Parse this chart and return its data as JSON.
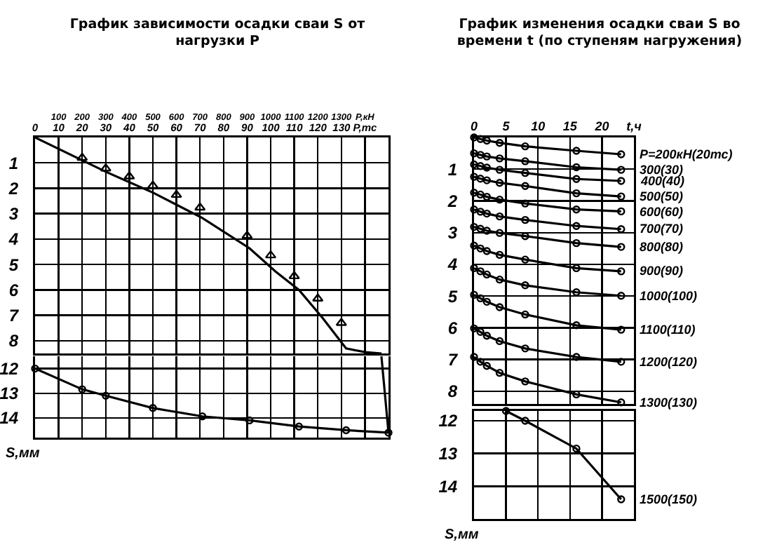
{
  "chart_data": [
    {
      "type": "line",
      "title": "График зависимости осадки сваи S от нагрузки P",
      "xlim": [
        0,
        150
      ],
      "xticks": [
        0,
        10,
        20,
        30,
        40,
        50,
        60,
        70,
        80,
        90,
        100,
        110,
        120,
        130,
        {
          "value": 140,
          "label": "P,тс"
        }
      ],
      "x2lim": [
        0,
        1500
      ],
      "x2ticks": [
        100,
        200,
        300,
        400,
        500,
        600,
        700,
        800,
        900,
        1000,
        1100,
        1200,
        1300,
        {
          "value": 1400,
          "label": "P,кН"
        }
      ],
      "ylim": [
        8.5,
        0
      ],
      "yticks": [
        1,
        2,
        3,
        4,
        5,
        6,
        7,
        8
      ],
      "grid": true,
      "series": [
        {
          "color": "#000000",
          "marker": "none",
          "x": [
            0,
            30,
            50,
            71,
            91,
            102,
            112,
            122,
            132,
            140,
            147
          ],
          "values": [
            0,
            1.35,
            2.17,
            3.17,
            4.36,
            5.27,
            6.0,
            7.1,
            8.3,
            8.45,
            8.5
          ]
        },
        {
          "type": "scatter",
          "color": "#000000",
          "marker": "triangle",
          "x": [
            20,
            30,
            40,
            50,
            60,
            70,
            90,
            100,
            110,
            120,
            130
          ],
          "values": [
            0.8,
            1.22,
            1.53,
            1.9,
            2.26,
            2.76,
            3.87,
            4.64,
            5.46,
            6.34,
            7.3
          ]
        }
      ]
    },
    {
      "type": "line",
      "ylabel": "S,мм",
      "xlim": [
        0,
        150
      ],
      "xticks": [
        0,
        10,
        20,
        30,
        40,
        50,
        60,
        70,
        80,
        90,
        100,
        110,
        120,
        130,
        140
      ],
      "ylim": [
        14.8,
        11.5
      ],
      "yticks": [
        12,
        13,
        14
      ],
      "grid": true,
      "tick_labels": "y",
      "series": [
        {
          "color": "#000000",
          "marker": "circle",
          "x": [
            0,
            20,
            30,
            50,
            71,
            91,
            112,
            132,
            150
          ],
          "values": [
            12.0,
            12.84,
            13.1,
            13.6,
            13.94,
            14.1,
            14.35,
            14.5,
            14.6
          ]
        },
        {
          "color": "#000000",
          "marker": "none",
          "x": [
            147,
            150
          ],
          "values": [
            11.5,
            14.6
          ]
        }
      ]
    },
    {
      "type": "line",
      "title": "График изменения осадки сваи S во времени t (по ступеням нагружения)",
      "x": [
        0,
        1,
        2,
        4,
        8,
        16,
        23
      ],
      "xlim": [
        0,
        25
      ],
      "xticks": [
        0,
        5,
        10,
        15,
        20,
        {
          "value": 25,
          "label": "t,ч"
        }
      ],
      "ylim": [
        8.4,
        0
      ],
      "yticks": [
        1,
        2,
        3,
        4,
        5,
        6,
        7,
        8
      ],
      "grid": true,
      "marker": "circle",
      "series": [
        {
          "name": "P=200кН(20тс)",
          "color": "#000000",
          "values": [
            0,
            0.05,
            0.1,
            0.17,
            0.28,
            0.42,
            0.53
          ]
        },
        {
          "name": "300(30)",
          "color": "#000000",
          "values": [
            0.5,
            0.55,
            0.6,
            0.66,
            0.75,
            0.94,
            1.02
          ]
        },
        {
          "name": "400(40)",
          "color": "#000000",
          "values": [
            0.85,
            0.9,
            0.95,
            1.02,
            1.12,
            1.31,
            1.37
          ]
        },
        {
          "name": "500(50)",
          "color": "#000000",
          "values": [
            1.24,
            1.3,
            1.35,
            1.43,
            1.53,
            1.76,
            1.86
          ]
        },
        {
          "name": "600(60)",
          "color": "#000000",
          "values": [
            1.74,
            1.8,
            1.87,
            1.96,
            2.08,
            2.27,
            2.33
          ]
        },
        {
          "name": "700(70)",
          "color": "#000000",
          "values": [
            2.27,
            2.34,
            2.4,
            2.49,
            2.6,
            2.79,
            2.89
          ]
        },
        {
          "name": "800(80)",
          "color": "#000000",
          "values": [
            2.82,
            2.88,
            2.94,
            3.01,
            3.11,
            3.33,
            3.45
          ]
        },
        {
          "name": "900(90)",
          "color": "#000000",
          "values": [
            3.41,
            3.5,
            3.58,
            3.7,
            3.85,
            4.12,
            4.22
          ]
        },
        {
          "name": "1000(100)",
          "color": "#000000",
          "values": [
            4.12,
            4.22,
            4.32,
            4.48,
            4.66,
            4.88,
            4.99
          ]
        },
        {
          "name": "1100(110)",
          "color": "#000000",
          "values": [
            4.96,
            5.07,
            5.18,
            5.35,
            5.58,
            5.92,
            6.06
          ]
        },
        {
          "name": "1200(120)",
          "color": "#000000",
          "values": [
            6.02,
            6.13,
            6.25,
            6.42,
            6.65,
            6.92,
            7.07
          ]
        },
        {
          "name": "1300(130)",
          "color": "#000000",
          "values": [
            6.92,
            7.07,
            7.2,
            7.42,
            7.69,
            8.1,
            8.35
          ]
        }
      ]
    },
    {
      "type": "line",
      "ylabel": "S,мм",
      "xlim": [
        0,
        25
      ],
      "xticks": [
        5,
        10,
        15,
        20
      ],
      "ylim": [
        15.0,
        11.7
      ],
      "yticks": [
        12,
        13,
        14
      ],
      "grid": true,
      "tick_labels": "y",
      "marker": "circle",
      "series": [
        {
          "name": "1500(150)",
          "color": "#000000",
          "x": [
            5,
            8,
            16,
            23
          ],
          "values": [
            11.7,
            12.0,
            12.85,
            14.4
          ]
        }
      ]
    }
  ]
}
